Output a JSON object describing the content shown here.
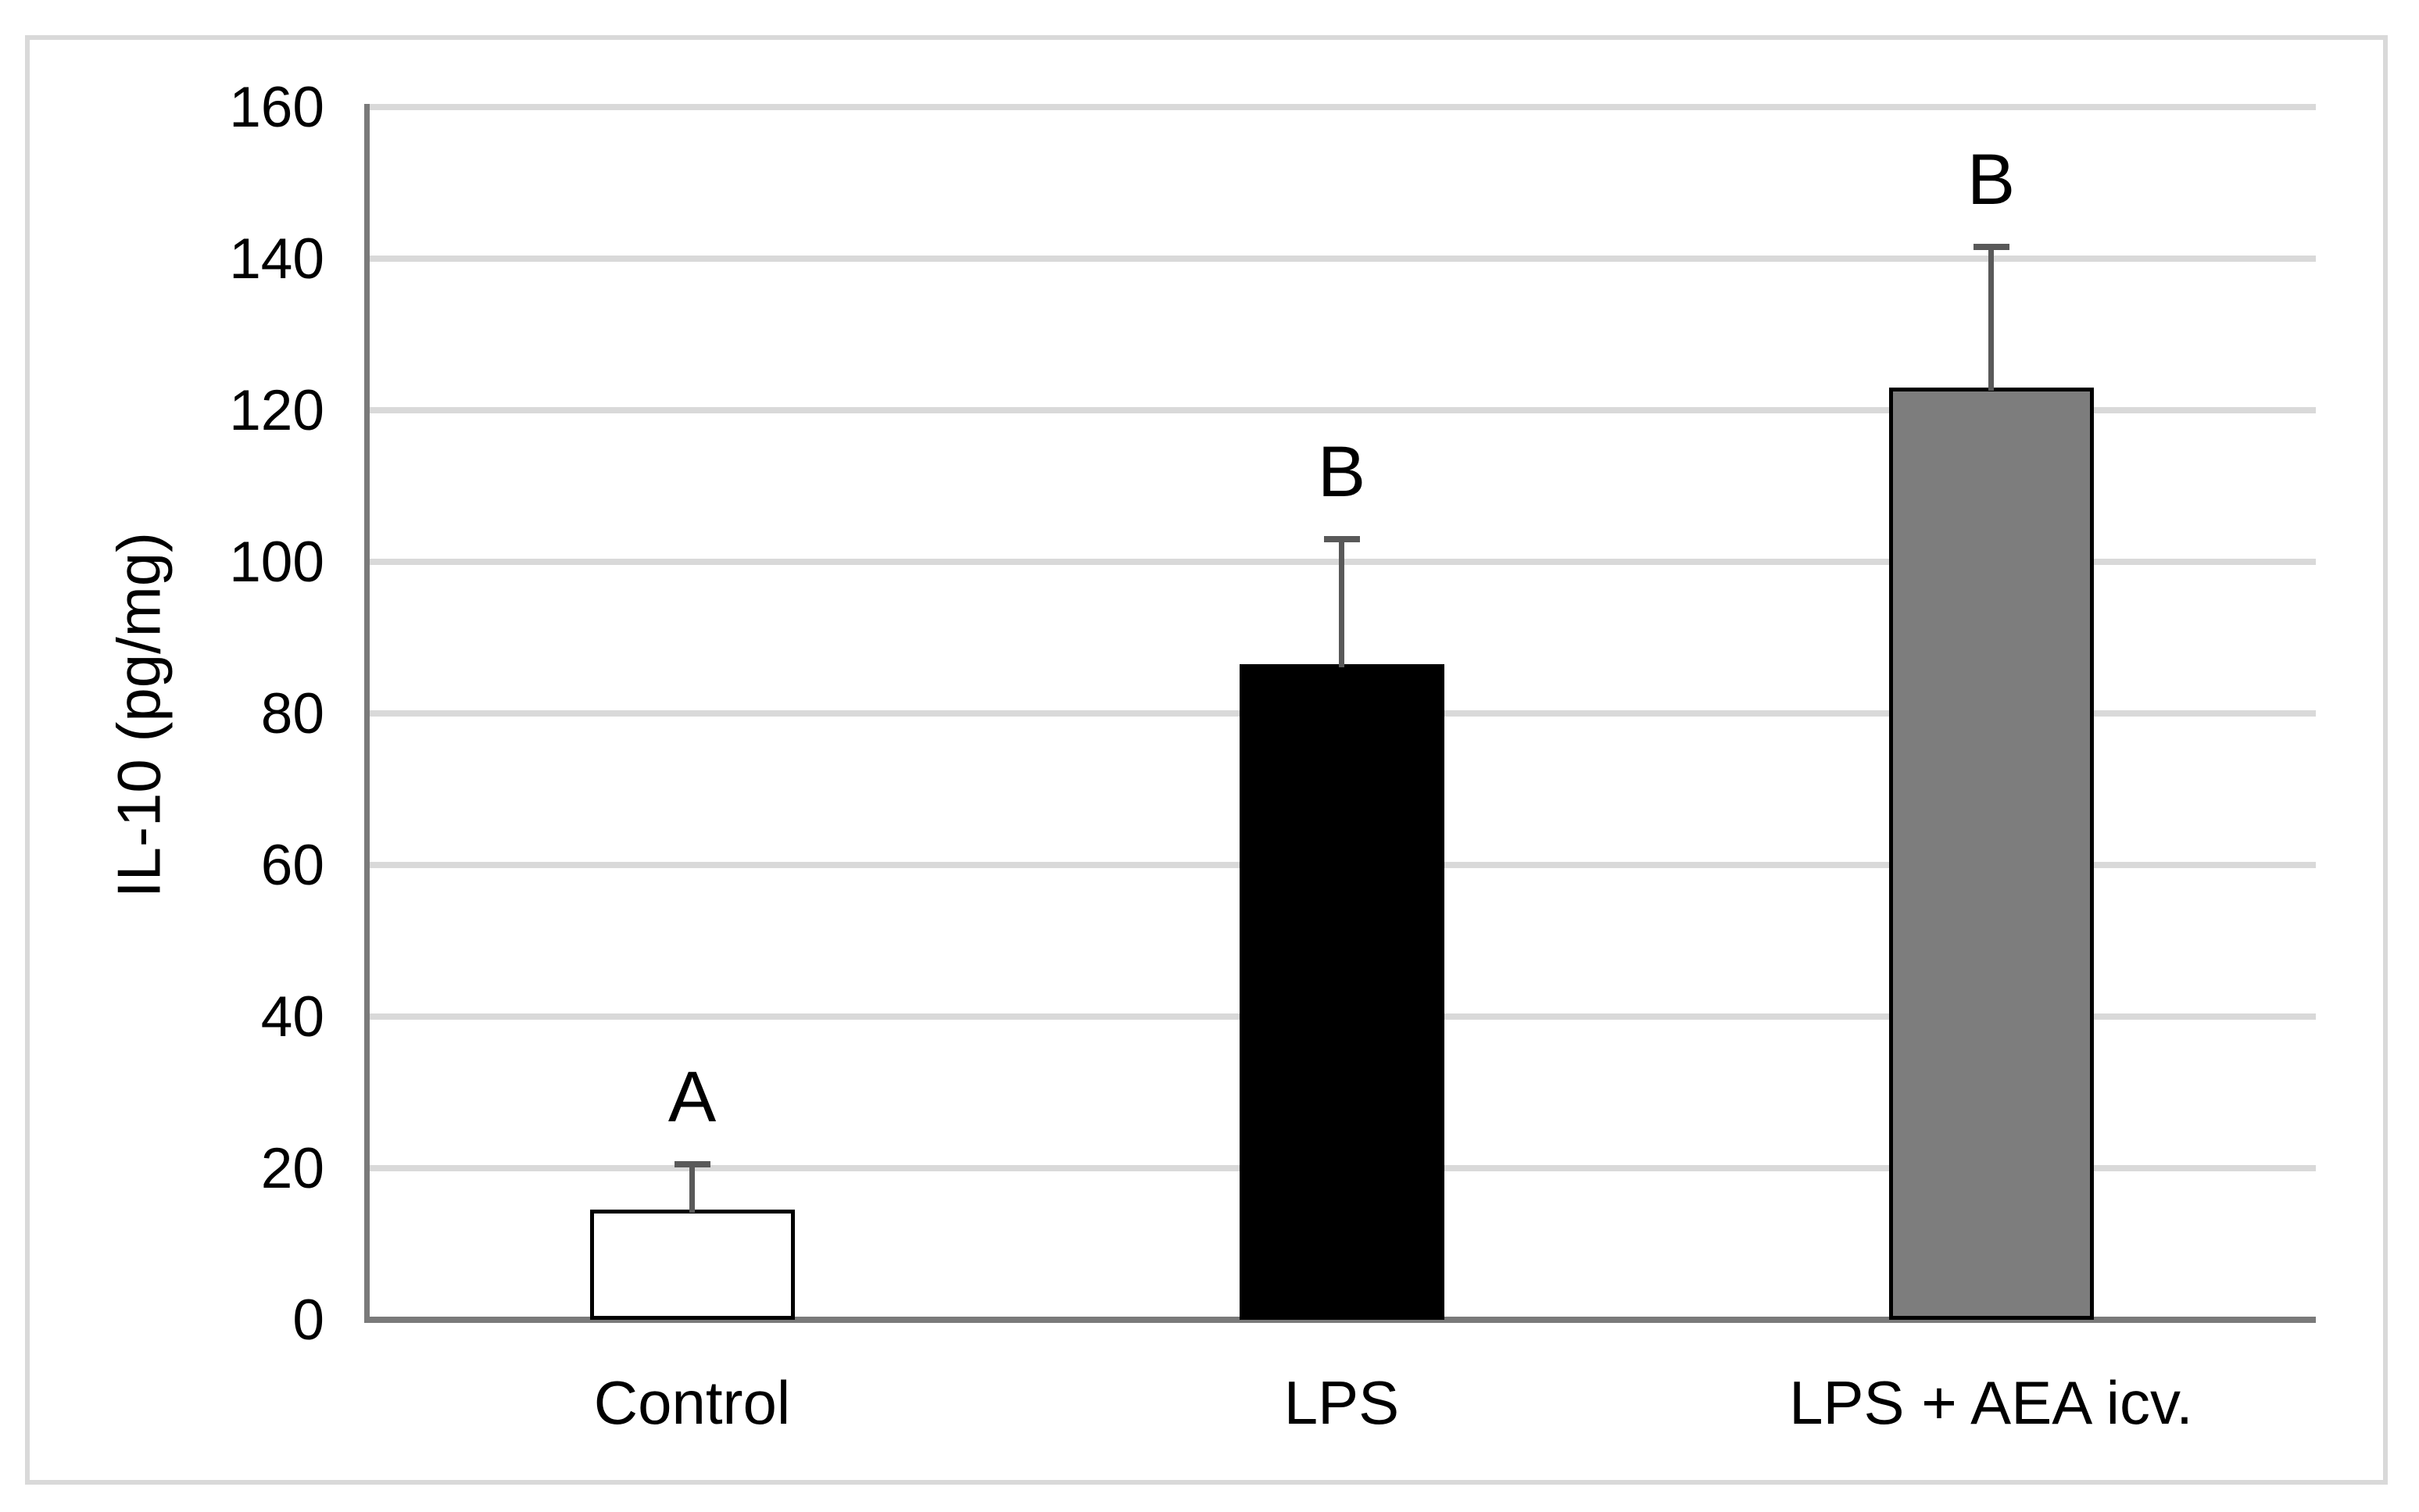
{
  "chart_data": {
    "type": "bar",
    "title": "",
    "xlabel": "",
    "ylabel": "IL-10 (pg/mg)",
    "ylim": [
      0,
      160
    ],
    "ytick_step": 20,
    "yticks": [
      0,
      20,
      40,
      60,
      80,
      100,
      120,
      140,
      160
    ],
    "grid": true,
    "legend": "none",
    "categories": [
      "Control",
      "LPS",
      "LPS + AEA icv."
    ],
    "values": [
      14.5,
      86.5,
      123
    ],
    "error_bar_tops": [
      20.5,
      103,
      141.5
    ],
    "significance_letters": [
      "A",
      "B",
      "B"
    ],
    "colors": {
      "bar_fills": [
        "#ffffff",
        "#000000",
        "#7d7d7d"
      ],
      "bar_border": "#000000",
      "error_bar": "#595959",
      "gridline": "#d9d9d9",
      "axis_line": "#7a7a7a",
      "frame": "#d9d9d9",
      "background": "#ffffff",
      "text": "#000000"
    }
  }
}
